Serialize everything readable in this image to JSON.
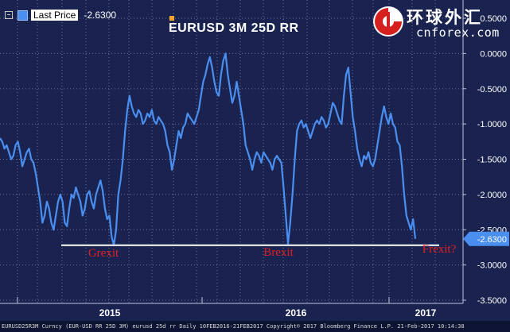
{
  "legend": {
    "label": "Last Price",
    "value": "-2.6300"
  },
  "watermark": {
    "text": "环球外汇",
    "domain": "cnforex.com"
  },
  "footer": {
    "text": "EURUSD25R3M Curncy (EUR-USD RR 25D 3M) eurusd 25d rr  Daily 10FEB2016-21FEB2017          Copyright© 2017 Bloomberg Finance L.P.   21-Feb-2017 10:14:38"
  },
  "colors": {
    "background": "#1a2350",
    "series": "#4a8ff0",
    "annotation": "#e02020",
    "current_badge": "#4a8ff0"
  },
  "chart_data": {
    "type": "line",
    "title": "EURUSD 3M 25D RR",
    "ylim": [
      -3.5,
      0.5
    ],
    "yticks": [
      "0.5000",
      "0.0000",
      "-0.5000",
      "-1.0000",
      "-1.5000",
      "-2.0000",
      "-2.5000",
      "-3.0000",
      "-3.5000"
    ],
    "yticks_values": [
      0.5,
      0.0,
      -0.5,
      -1.0,
      -1.5,
      -2.0,
      -2.5,
      -3.0,
      -3.5
    ],
    "grid": true,
    "x_labels": [
      "2015",
      "2016",
      "2017"
    ],
    "current_value_label": "-2.6300",
    "current_value": -2.63,
    "reference_line": -2.72,
    "annotations": [
      "Grexit",
      "Brexit",
      "Frexit?"
    ],
    "series": [
      {
        "values": [
          -1.2,
          -1.25,
          -1.35,
          -1.3,
          -1.4,
          -1.5,
          -1.45,
          -1.3,
          -1.25,
          -1.4,
          -1.6,
          -1.5,
          -1.4,
          -1.35,
          -1.5,
          -1.55,
          -1.7,
          -1.9,
          -2.1,
          -2.4,
          -2.3,
          -2.1,
          -2.2,
          -2.4,
          -2.5,
          -2.3,
          -2.1,
          -2.0,
          -2.1,
          -2.4,
          -2.45,
          -2.2,
          -2.0,
          -2.05,
          -1.9,
          -2.0,
          -2.1,
          -2.3,
          -2.2,
          -2.0,
          -1.95,
          -2.1,
          -2.2,
          -2.0,
          -1.9,
          -1.8,
          -1.95,
          -2.2,
          -2.35,
          -2.3,
          -2.6,
          -2.72,
          -2.5,
          -2.0,
          -1.8,
          -1.5,
          -1.1,
          -0.8,
          -0.6,
          -0.75,
          -0.85,
          -0.9,
          -0.8,
          -0.85,
          -1.0,
          -0.95,
          -0.85,
          -0.9,
          -0.8,
          -0.95,
          -1.0,
          -0.9,
          -0.95,
          -1.0,
          -1.1,
          -1.3,
          -1.4,
          -1.65,
          -1.5,
          -1.3,
          -1.1,
          -1.2,
          -1.05,
          -1.0,
          -0.85,
          -0.9,
          -0.95,
          -1.0,
          -0.9,
          -0.8,
          -0.6,
          -0.4,
          -0.3,
          -0.15,
          -0.05,
          -0.2,
          -0.4,
          -0.55,
          -0.6,
          -0.3,
          -0.1,
          0.0,
          -0.3,
          -0.5,
          -0.7,
          -0.6,
          -0.4,
          -0.6,
          -0.8,
          -1.0,
          -1.3,
          -1.4,
          -1.5,
          -1.65,
          -1.5,
          -1.4,
          -1.45,
          -1.55,
          -1.4,
          -1.45,
          -1.5,
          -1.55,
          -1.65,
          -1.5,
          -1.45,
          -1.5,
          -1.55,
          -1.9,
          -2.3,
          -2.7,
          -2.4,
          -2.0,
          -1.5,
          -1.1,
          -1.0,
          -0.95,
          -1.05,
          -1.0,
          -1.1,
          -1.2,
          -1.1,
          -1.0,
          -0.95,
          -1.0,
          -0.9,
          -0.95,
          -1.05,
          -1.0,
          -0.85,
          -0.7,
          -0.75,
          -0.85,
          -0.95,
          -1.0,
          -0.6,
          -0.3,
          -0.2,
          -0.55,
          -0.9,
          -1.1,
          -1.35,
          -1.5,
          -1.6,
          -1.45,
          -1.5,
          -1.4,
          -1.55,
          -1.6,
          -1.5,
          -1.3,
          -1.1,
          -0.9,
          -0.75,
          -0.9,
          -1.0,
          -0.85,
          -1.0,
          -1.05,
          -1.25,
          -1.3,
          -1.6,
          -2.0,
          -2.3,
          -2.4,
          -2.5,
          -2.35,
          -2.63
        ]
      }
    ]
  }
}
